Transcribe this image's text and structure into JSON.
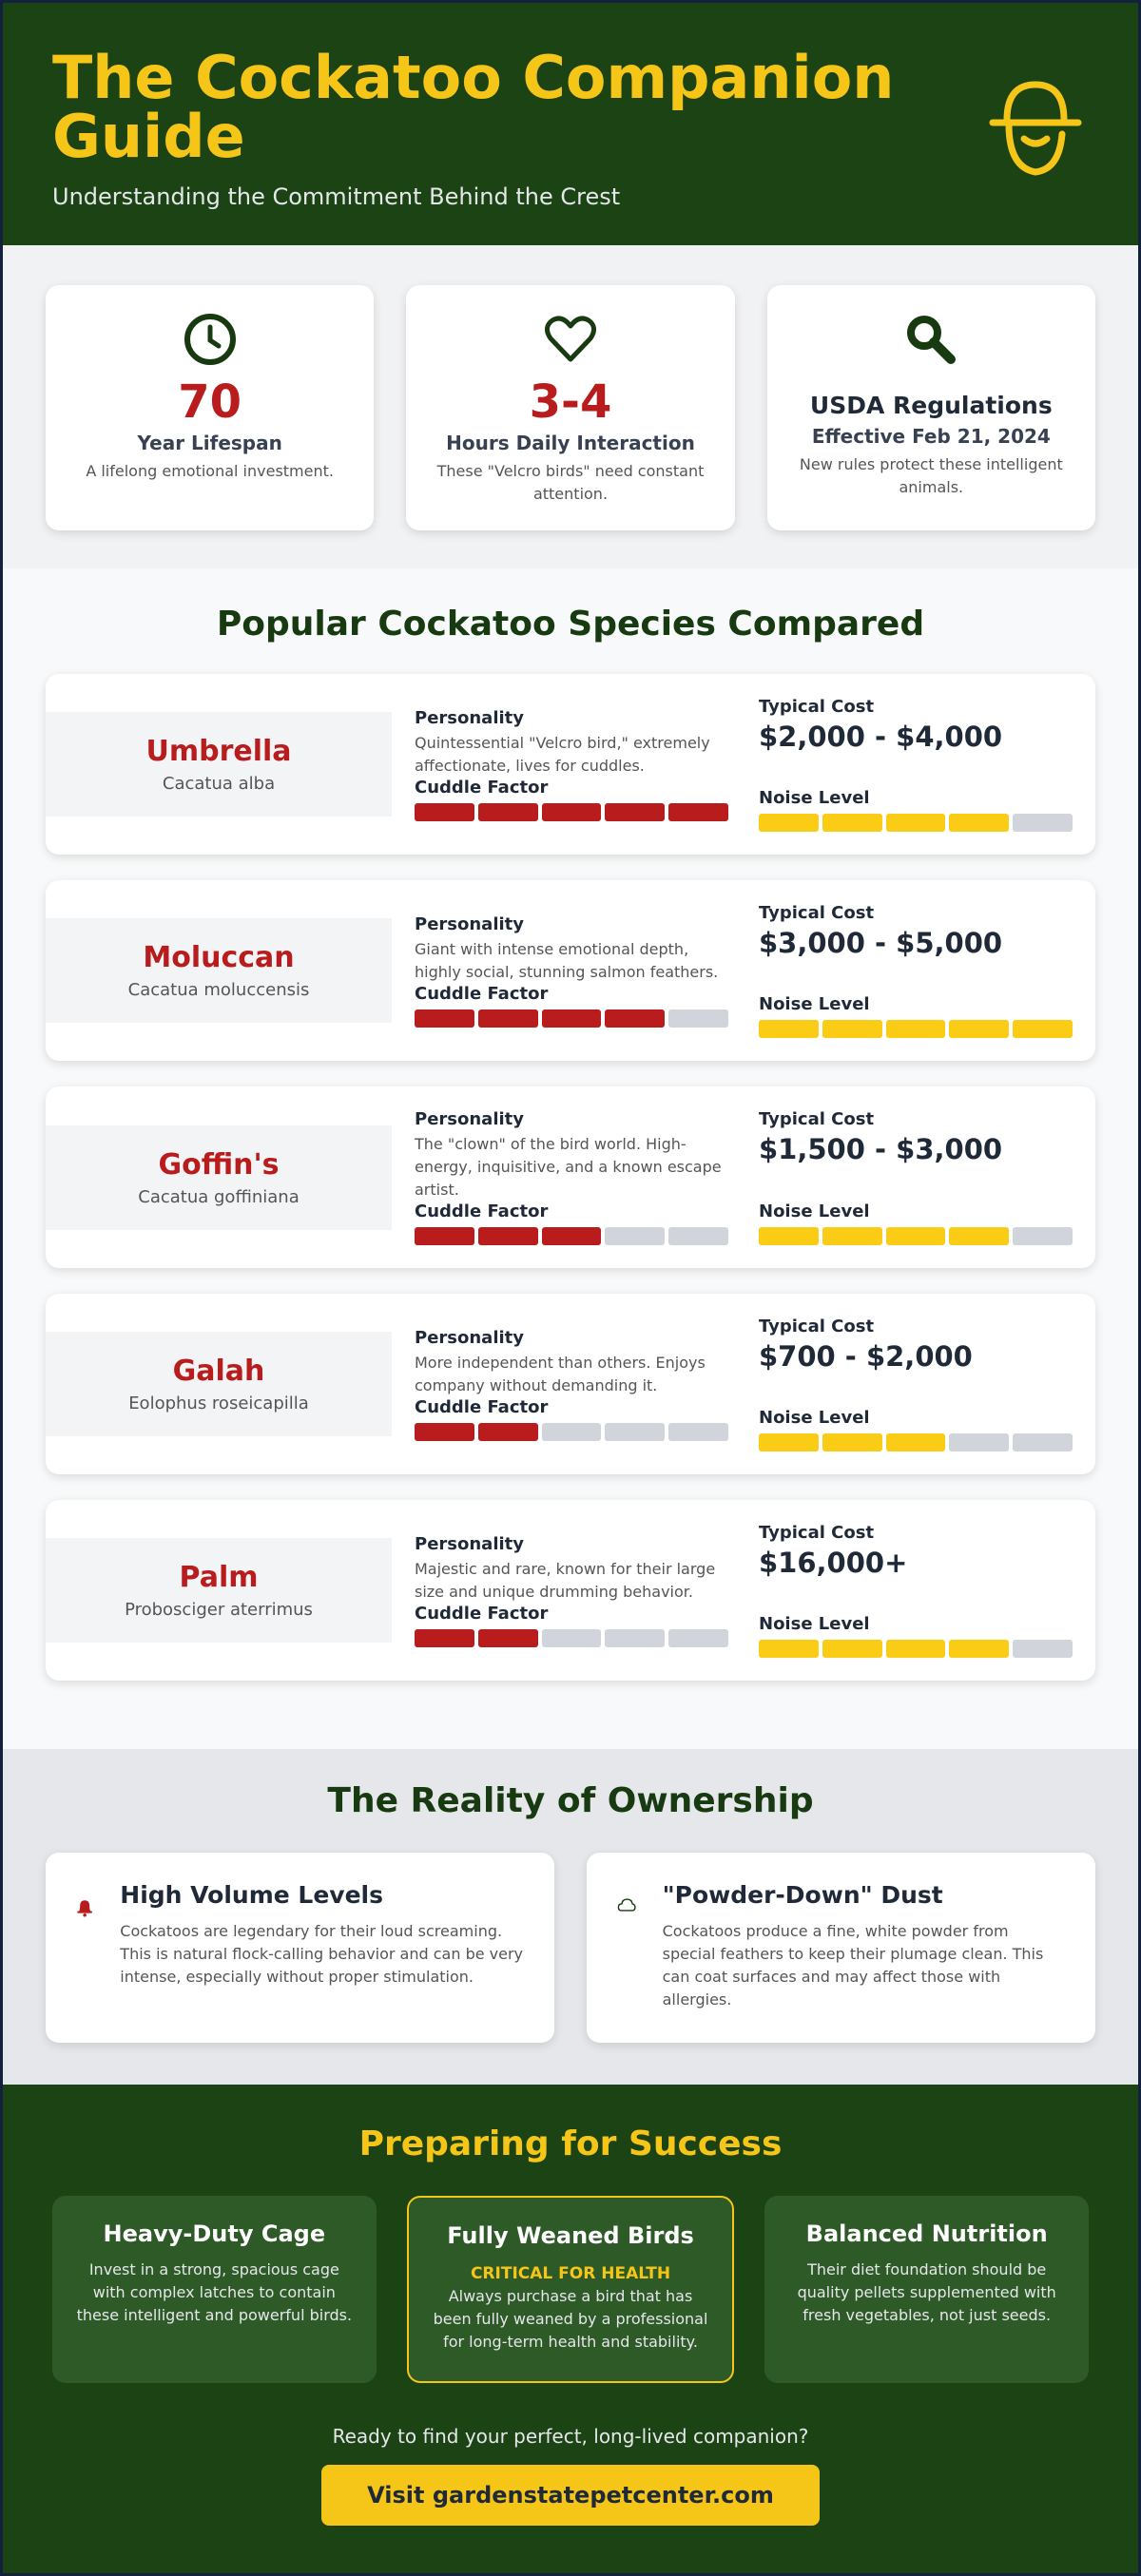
{
  "header": {
    "title": "The Cockatoo Companion Guide",
    "subtitle": "Understanding the Commitment Behind the Crest"
  },
  "stats": [
    {
      "value": 70,
      "label": "Year Lifespan",
      "description": "A lifelong emotional investment."
    },
    {
      "value": "3-4",
      "label": "Hours Daily Interaction",
      "description": "These \"Velcro birds\" need constant attention."
    },
    {
      "title": "USDA Regulations",
      "subtitle": "Effective Feb 21, 2024",
      "description": "New rules protect these intelligent animals."
    }
  ],
  "species_section": {
    "title": "Popular Cockatoo Species Compared",
    "labels": {
      "personality": "Personality",
      "cost": "Typical Cost",
      "cuddle": "Cuddle Factor",
      "noise": "Noise Level"
    },
    "rating_scale": 5,
    "species": [
      {
        "name": "Umbrella",
        "scientific": "Cacatua alba",
        "personality": "Quintessential \"Velcro bird,\" extremely affectionate, lives for cuddles.",
        "cost": "$2,000 - $4,000",
        "cuddle": 5,
        "noise": 4
      },
      {
        "name": "Moluccan",
        "scientific": "Cacatua moluccensis",
        "personality": "Giant with intense emotional depth, highly social, stunning salmon feathers.",
        "cost": "$3,000 - $5,000",
        "cuddle": 4,
        "noise": 5
      },
      {
        "name": "Goffin's",
        "scientific": "Cacatua goffiniana",
        "personality": "The \"clown\" of the bird world. High-energy, inquisitive, and a known escape artist.",
        "cost": "$1,500 - $3,000",
        "cuddle": 3,
        "noise": 4
      },
      {
        "name": "Galah",
        "scientific": "Eolophus roseicapilla",
        "personality": "More independent than others. Enjoys company without demanding it.",
        "cost": "$700 - $2,000",
        "cuddle": 2,
        "noise": 3
      },
      {
        "name": "Palm",
        "scientific": "Probosciger aterrimus",
        "personality": "Majestic and rare, known for their large size and unique drumming behavior.",
        "cost": "$16,000+",
        "cuddle": 2,
        "noise": 4
      }
    ]
  },
  "ownership": {
    "title": "The Reality of Ownership",
    "cards": [
      {
        "title": "High Volume Levels",
        "text": "Cockatoos are legendary for their loud screaming. This is natural flock-calling behavior and can be very intense, especially without proper stimulation."
      },
      {
        "title": "\"Powder-Down\" Dust",
        "text": "Cockatoos produce a fine, white powder from special feathers to keep their plumage clean. This can coat surfaces and may affect those with allergies."
      }
    ]
  },
  "preparing": {
    "title": "Preparing for Success",
    "cards": [
      {
        "title": "Heavy-Duty Cage",
        "text": "Invest in a strong, spacious cage with complex latches to contain these intelligent and powerful birds."
      },
      {
        "title": "Fully Weaned Birds",
        "highlight": "CRITICAL FOR HEALTH",
        "text": "Always purchase a bird that has been fully weaned by a professional for long-term health and stability."
      },
      {
        "title": "Balanced Nutrition",
        "text": "Their diet foundation should be quality pellets supplemented with fresh vegetables, not just seeds."
      }
    ],
    "cta_text": "Ready to find your perfect, long-lived companion?",
    "button": "Visit gardenstatepetcenter.com"
  }
}
